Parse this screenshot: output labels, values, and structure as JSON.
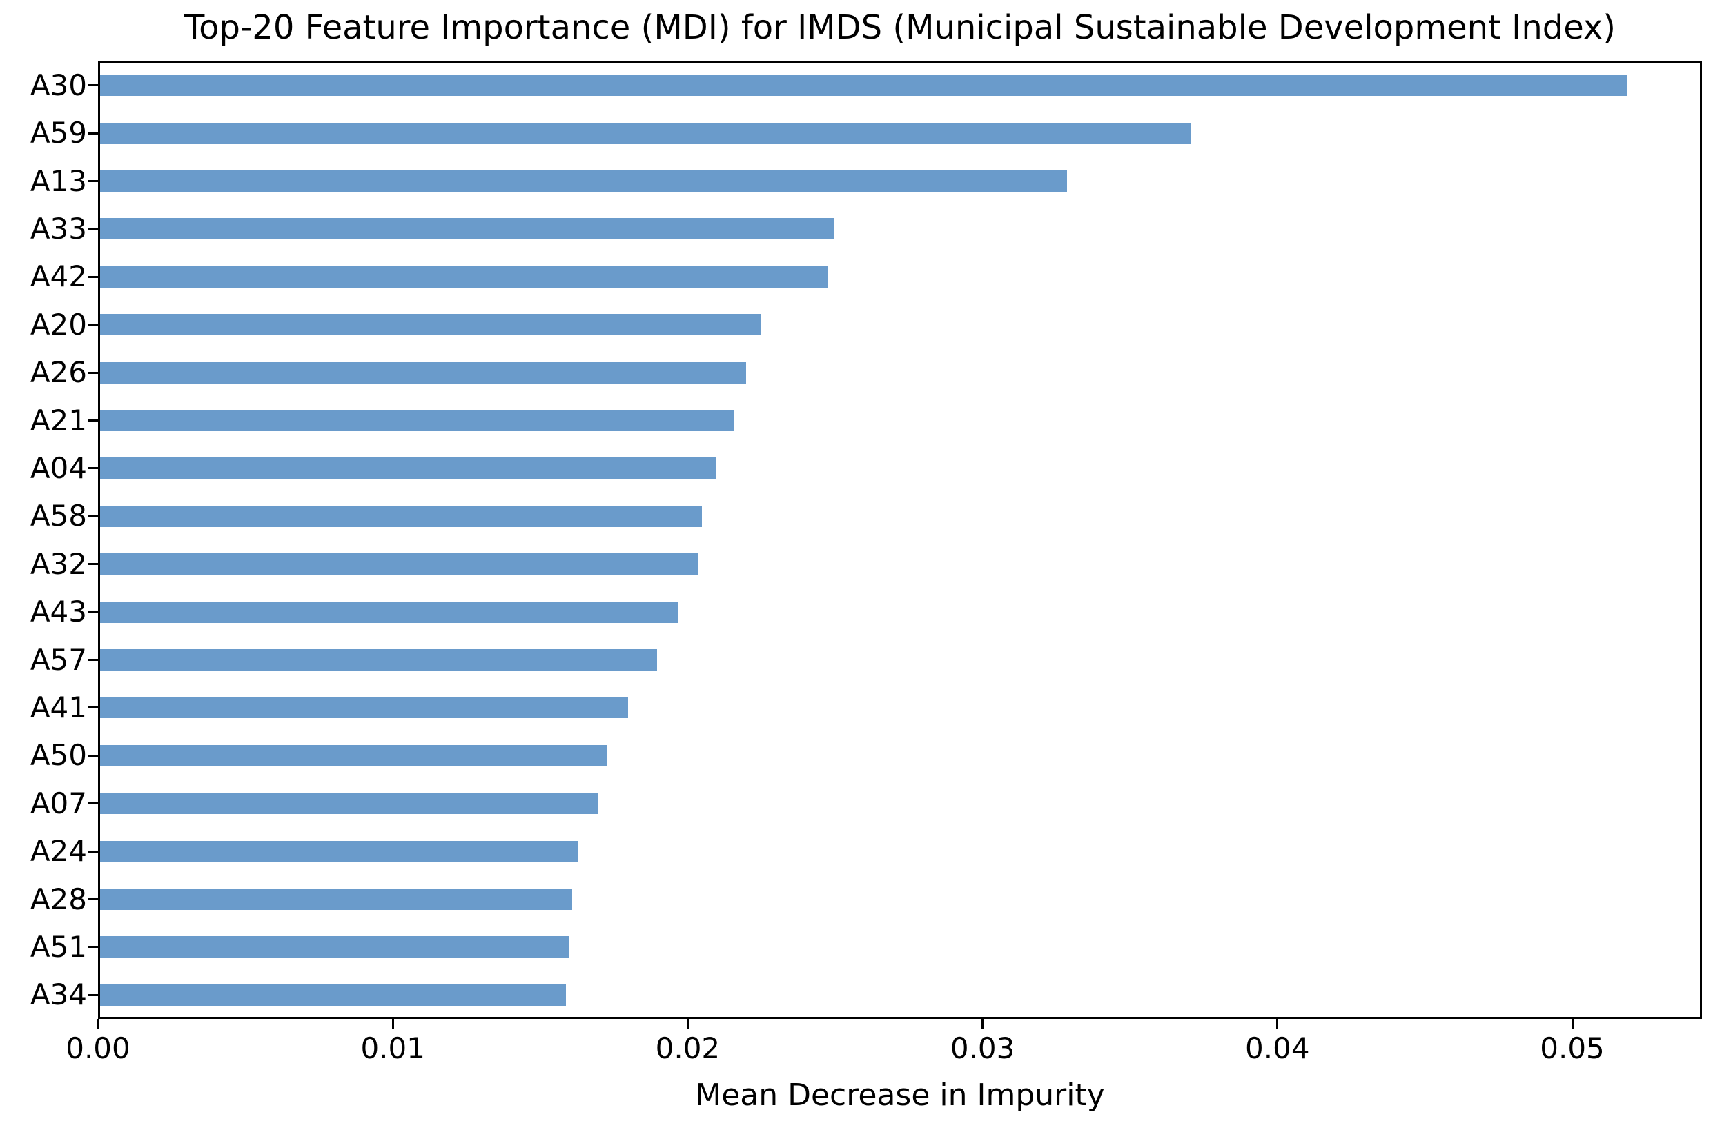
{
  "chart_data": {
    "type": "bar",
    "orientation": "horizontal",
    "title": "Top-20 Feature Importance (MDI) for IMDS (Municipal Sustainable Development Index)",
    "xlabel": "Mean Decrease in Impurity",
    "ylabel": "",
    "categories": [
      "A30",
      "A59",
      "A13",
      "A33",
      "A42",
      "A20",
      "A26",
      "A21",
      "A04",
      "A58",
      "A32",
      "A43",
      "A57",
      "A41",
      "A50",
      "A07",
      "A24",
      "A28",
      "A51",
      "A34"
    ],
    "values": [
      0.0518,
      0.037,
      0.0328,
      0.0249,
      0.0247,
      0.0224,
      0.0219,
      0.0215,
      0.0209,
      0.0204,
      0.0203,
      0.0196,
      0.0189,
      0.0179,
      0.0172,
      0.0169,
      0.0162,
      0.016,
      0.0159,
      0.0158
    ],
    "xlim": [
      0,
      0.0544
    ],
    "xticks": [
      0.0,
      0.01,
      0.02,
      0.03,
      0.04,
      0.05
    ],
    "xtick_labels": [
      "0.00",
      "0.01",
      "0.02",
      "0.03",
      "0.04",
      "0.05"
    ],
    "grid": false,
    "legend": "none",
    "bar_color": "#6a9bcb",
    "axis_color": "#000000",
    "background_color": "#ffffff"
  }
}
